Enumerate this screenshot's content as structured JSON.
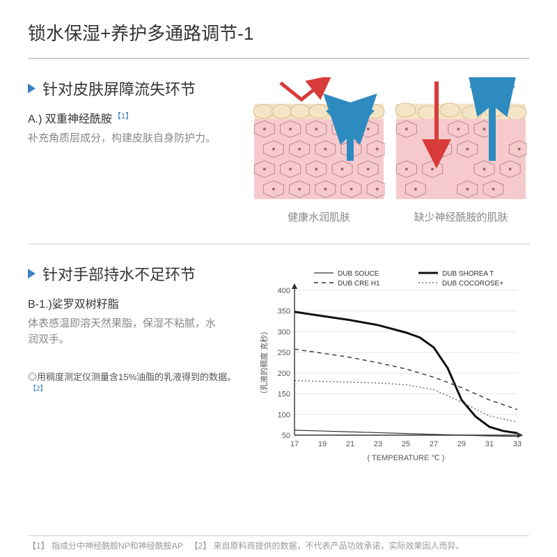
{
  "title": "锁水保湿+养护多通路调节-1",
  "section1": {
    "heading": "针对皮肤屏障流失环节",
    "sub_label": "A.) 双重神经酰胺",
    "sup": "【1】",
    "desc": "补充角质层成分，构建皮肤自身防护力。",
    "fig": {
      "cap_left": "健康水润肌肤",
      "cap_right": "缺少神经酰胺的肌肤",
      "top_fill": "#f4e5c7",
      "top_stroke": "#d8be8d",
      "body_fill": "#f6cacd",
      "body_stroke": "#bb858a",
      "cell_dot": "#9e686d",
      "bg": "#ffffff",
      "arrow_blue": "#2e8bc0",
      "arrow_red": "#d93a3a"
    }
  },
  "section2": {
    "heading": "针对手部持水不足环节",
    "sub_label": "B-1.)娑罗双树籽脂",
    "desc": "体表感温即溶天然果脂，保湿不粘腻，水润双手。",
    "note_prefix": "◎用稠度测定仪测量含15%油脂的乳液得到的数据。",
    "note_sup": "【2】",
    "chart": {
      "type": "line",
      "xlabel": "( TEMPERATURE  ℃ )",
      "ylabel": "（乳液的稠度  克秒）",
      "xlim": [
        17,
        33
      ],
      "ylim": [
        50,
        400
      ],
      "x_ticks": [
        17,
        19,
        21,
        23,
        25,
        27,
        29,
        31,
        33
      ],
      "y_ticks": [
        50,
        100,
        150,
        200,
        250,
        300,
        350,
        400
      ],
      "axis_color": "#333333",
      "grid_color": "#e6e6e6",
      "background_color": "#ffffff",
      "tick_fontsize": 11,
      "label_fontsize": 11,
      "legend": {
        "items": [
          "DUB SOUCE",
          "DUB SHOREA T",
          "DUB CRE H1",
          "DUB COCOROSE+"
        ],
        "fontsize": 10
      },
      "series": {
        "DUB SHOREA T": {
          "stroke": "#111111",
          "width": 3,
          "dash": "none",
          "x": [
            17,
            19,
            21,
            23,
            25,
            26,
            27,
            28,
            29,
            30,
            31,
            32,
            33
          ],
          "y": [
            348,
            338,
            328,
            316,
            298,
            286,
            262,
            212,
            135,
            95,
            70,
            60,
            55
          ]
        },
        "DUB SOUCE": {
          "stroke": "#333333",
          "width": 1.2,
          "dash": "none",
          "x": [
            17,
            19,
            21,
            23,
            25,
            27,
            29,
            31,
            33
          ],
          "y": [
            62,
            60,
            58,
            56,
            54,
            52,
            50,
            48,
            47
          ]
        },
        "DUB CRE H1": {
          "stroke": "#333333",
          "width": 1.4,
          "dash": "6,5",
          "x": [
            17,
            19,
            21,
            23,
            25,
            27,
            29,
            31,
            33
          ],
          "y": [
            258,
            248,
            238,
            225,
            210,
            190,
            165,
            135,
            112
          ]
        },
        "DUB COCOROSE+": {
          "stroke": "#555555",
          "width": 1.2,
          "dash": "2,3",
          "x": [
            17,
            19,
            21,
            23,
            25,
            27,
            29,
            31,
            33
          ],
          "y": [
            182,
            180,
            178,
            176,
            172,
            160,
            130,
            96,
            82
          ]
        }
      }
    }
  },
  "footnote": {
    "f1_label": "【1】",
    "f1_text": "指成分中神经酰胺NP和神经酰胺AP",
    "f2_label": "【2】",
    "f2_text": "来自原料商提供的数据，不代表产品功效承诺，实际效果因人而异。"
  }
}
